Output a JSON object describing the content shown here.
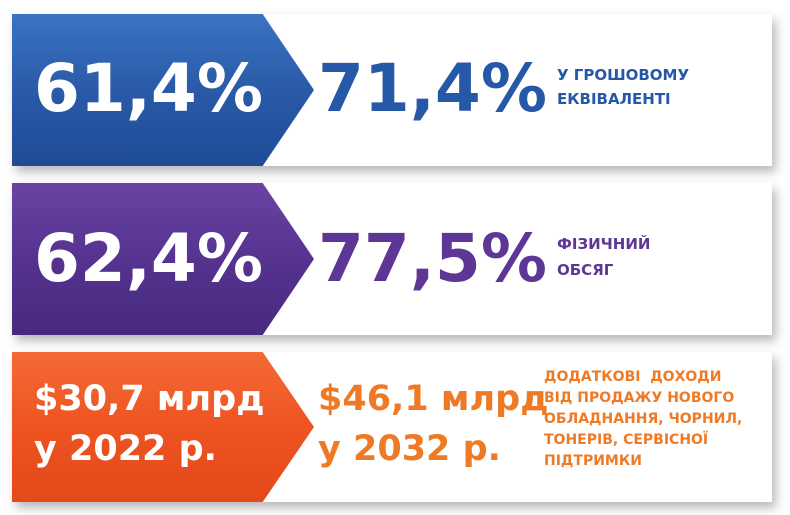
{
  "rows": [
    {
      "left_value": "61,4%",
      "right_value": "71,4%",
      "description": [
        "У ГРОШОВОМУ",
        "ЕКВІВАЛЕНТІ"
      ],
      "colors": {
        "arrow": "#2a5aa8",
        "text": "#2558a6"
      }
    },
    {
      "left_value": "62,4%",
      "right_value": "77,5%",
      "description": [
        "ФІЗИЧНИЙ",
        "ОБСЯГ"
      ],
      "colors": {
        "arrow": "#55338f",
        "text": "#5e3796"
      }
    },
    {
      "left_value": [
        "$30,7 млрд",
        "у 2022 р."
      ],
      "right_value": [
        "$46,1 млрд",
        "у 2032 р."
      ],
      "description": [
        "ДОДАТКОВІ  ДОХОДИ",
        "ВІД ПРОДАЖУ НОВОГО",
        "ОБЛАДНАННЯ, ЧОРНИЛ,",
        "ТОНЕРІВ, СЕРВІСНОЇ",
        "ПІДТРИМКИ"
      ],
      "colors": {
        "arrow": "#ee5422",
        "text": "#ef7a25"
      }
    }
  ]
}
